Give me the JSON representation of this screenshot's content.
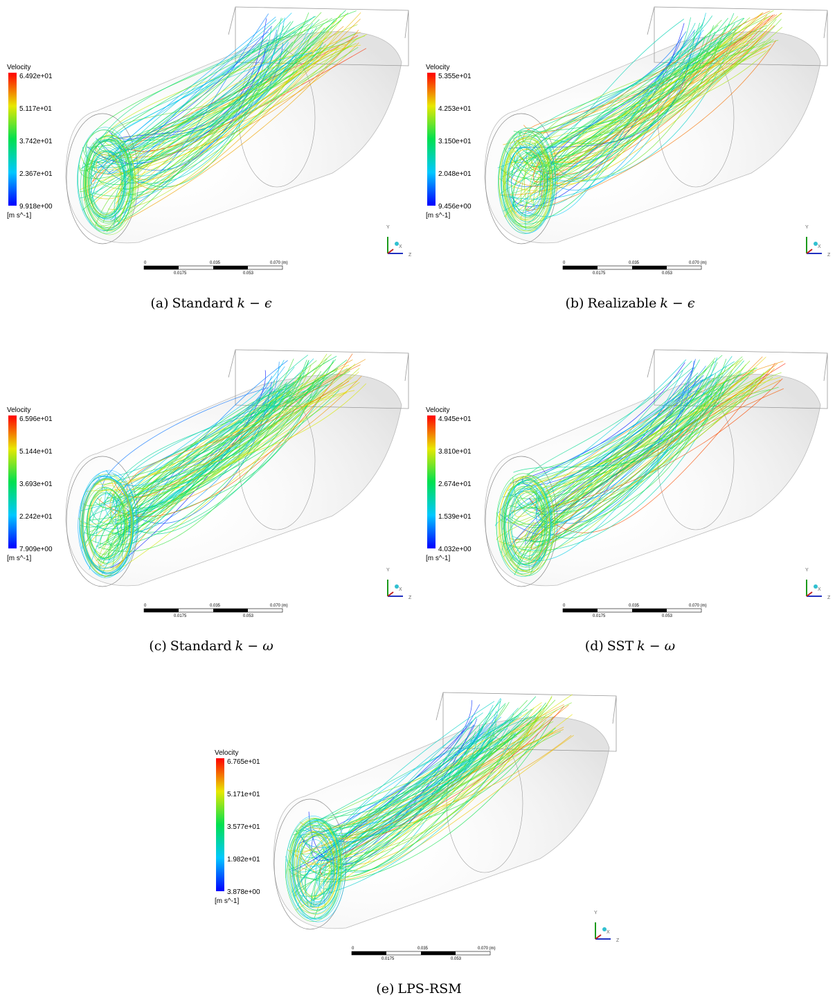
{
  "panels": [
    {
      "legend": {
        "title": "Velocity",
        "ticks": [
          "6.492e+01",
          "5.117e+01",
          "3.742e+01",
          "2.367e+01",
          "9.918e+00"
        ],
        "unit": "[m s^-1]"
      },
      "scale": {
        "top": [
          "0",
          "0.035",
          "0.070 (m)"
        ],
        "bottom": [
          "0.0175",
          "0.053"
        ]
      },
      "triad": [
        "Y",
        "X",
        "Z"
      ],
      "caption": {
        "label": "(a)",
        "text": "Standard",
        "math": "k − ϵ"
      }
    },
    {
      "legend": {
        "title": "Velocity",
        "ticks": [
          "5.355e+01",
          "4.253e+01",
          "3.150e+01",
          "2.048e+01",
          "9.456e+00"
        ],
        "unit": "[m s^-1]"
      },
      "scale": {
        "top": [
          "0",
          "0.035",
          "0.070 (m)"
        ],
        "bottom": [
          "0.0175",
          "0.053"
        ]
      },
      "triad": [
        "Y",
        "X",
        "Z"
      ],
      "caption": {
        "label": "(b)",
        "text": "Realizable",
        "math": "k − ϵ"
      }
    },
    {
      "legend": {
        "title": "Velocity",
        "ticks": [
          "6.596e+01",
          "5.144e+01",
          "3.693e+01",
          "2.242e+01",
          "7.909e+00"
        ],
        "unit": "[m s^-1]"
      },
      "scale": {
        "top": [
          "0",
          "0.035",
          "0.070 (m)"
        ],
        "bottom": [
          "0.0175",
          "0.053"
        ]
      },
      "triad": [
        "Y",
        "X",
        "Z"
      ],
      "caption": {
        "label": "(c)",
        "text": "Standard",
        "math": "k − ω"
      }
    },
    {
      "legend": {
        "title": "Velocity",
        "ticks": [
          "4.945e+01",
          "3.810e+01",
          "2.674e+01",
          "1.539e+01",
          "4.032e+00"
        ],
        "unit": "[m s^-1]"
      },
      "scale": {
        "top": [
          "0",
          "0.035",
          "0.070 (m)"
        ],
        "bottom": [
          "0.0175",
          "0.053"
        ]
      },
      "triad": [
        "Y",
        "X",
        "Z"
      ],
      "caption": {
        "label": "(d)",
        "text": "SST",
        "math": "k − ω"
      }
    },
    {
      "legend": {
        "title": "Velocity",
        "ticks": [
          "6.765e+01",
          "5.171e+01",
          "3.577e+01",
          "1.982e+01",
          "3.878e+00"
        ],
        "unit": "[m s^-1]"
      },
      "scale": {
        "top": [
          "0",
          "0.035",
          "0.070 (m)"
        ],
        "bottom": [
          "0.0175",
          "0.053"
        ]
      },
      "triad": [
        "Y",
        "X",
        "Z"
      ],
      "caption": {
        "label": "(e)",
        "text": "LPS-RSM"
      }
    }
  ]
}
